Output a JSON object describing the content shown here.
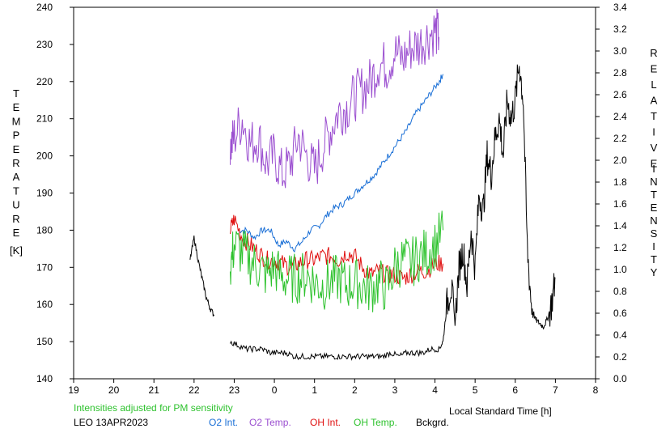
{
  "chart_data": {
    "type": "line",
    "xlabel": "Local Standard Time [h]",
    "ylabel_left_letters": [
      "T",
      "E",
      "M",
      "P",
      "E",
      "R",
      "A",
      "T",
      "U",
      "R",
      "E"
    ],
    "ylabel_left_unit": "[K]",
    "ylabel_right_word1": [
      "R",
      "E",
      "L",
      "A",
      "T",
      "I",
      "V",
      "E"
    ],
    "ylabel_right_word2": [
      "I",
      "N",
      "T",
      "E",
      "N",
      "S",
      "I",
      "T",
      "Y"
    ],
    "x_ticks": [
      "19",
      "20",
      "21",
      "22",
      "23",
      "0",
      "1",
      "2",
      "3",
      "4",
      "5",
      "6",
      "7",
      "8"
    ],
    "xlim": [
      19,
      32
    ],
    "y_left_ticks": [
      "140",
      "150",
      "160",
      "170",
      "180",
      "190",
      "200",
      "210",
      "220",
      "230",
      "240"
    ],
    "ylim_left": [
      140,
      240
    ],
    "y_right_ticks": [
      "0.0",
      "0.2",
      "0.4",
      "0.6",
      "0.8",
      "1.0",
      "1.2",
      "1.4",
      "1.6",
      "1.8",
      "2.0",
      "2.2",
      "2.4",
      "2.6",
      "2.8",
      "3.0",
      "3.2",
      "3.4"
    ],
    "ylim_right": [
      0,
      3.4
    ],
    "note": "Intensities adjusted for PM sensitivity",
    "station": "LEO 13APR2023",
    "series": [
      {
        "name": "O2 Int.",
        "color": "#1a6fd6",
        "axis": "left",
        "x": [
          23.1,
          23.3,
          23.5,
          23.7,
          23.9,
          24.1,
          24.3,
          24.5,
          24.7,
          24.9,
          25.1,
          25.3,
          25.5,
          25.7,
          25.9,
          26.1,
          26.3,
          26.5,
          26.7,
          26.9,
          27.1,
          27.3,
          27.5,
          27.7,
          27.9,
          28.1,
          28.2
        ],
        "y": [
          180,
          180,
          178,
          180,
          180,
          176,
          177,
          175,
          177,
          180,
          181,
          184,
          186,
          187,
          189,
          191,
          193,
          195,
          198,
          201,
          204,
          207,
          211,
          214,
          217,
          220,
          222
        ]
      },
      {
        "name": "O2 Temp.",
        "color": "#9b4fd0",
        "axis": "left",
        "x": [
          22.9,
          23.0,
          23.2,
          23.4,
          23.6,
          23.8,
          24.0,
          24.2,
          24.4,
          24.6,
          24.8,
          25.0,
          25.2,
          25.4,
          25.6,
          25.8,
          26.0,
          26.2,
          26.4,
          26.6,
          26.8,
          27.0,
          27.2,
          27.4,
          27.6,
          27.8,
          28.0,
          28.1
        ],
        "y": [
          202,
          205,
          210,
          203,
          205,
          198,
          200,
          195,
          198,
          205,
          200,
          196,
          202,
          207,
          212,
          213,
          216,
          218,
          220,
          225,
          224,
          228,
          226,
          229,
          230,
          232,
          234,
          232
        ]
      },
      {
        "name": "OH Int.",
        "color": "#e01010",
        "axis": "left",
        "x": [
          22.9,
          23.0,
          23.2,
          23.4,
          23.6,
          23.8,
          24.0,
          24.2,
          24.4,
          24.6,
          24.8,
          25.0,
          25.2,
          25.4,
          25.6,
          25.8,
          26.0,
          26.2,
          26.4,
          26.6,
          26.8,
          27.0,
          27.2,
          27.4,
          27.6,
          27.8,
          28.0,
          28.2
        ],
        "y": [
          180,
          183,
          178,
          176,
          174,
          172,
          172,
          171,
          170,
          171,
          172,
          172,
          173,
          173,
          172,
          174,
          173,
          170,
          168,
          169,
          168,
          168,
          167,
          168,
          169,
          169,
          171,
          171
        ]
      },
      {
        "name": "OH Temp.",
        "color": "#2ec22e",
        "axis": "left",
        "x": [
          22.9,
          23.0,
          23.2,
          23.4,
          23.6,
          23.8,
          24.0,
          24.2,
          24.4,
          24.6,
          24.8,
          25.0,
          25.2,
          25.4,
          25.6,
          25.8,
          26.0,
          26.2,
          26.4,
          26.6,
          26.8,
          27.0,
          27.2,
          27.4,
          27.6,
          27.8,
          28.0,
          28.2
        ],
        "y": [
          170,
          176,
          174,
          172,
          170,
          168,
          170,
          167,
          167,
          167,
          168,
          166,
          165,
          166,
          167,
          165,
          166,
          165,
          164,
          166,
          164,
          170,
          172,
          171,
          173,
          174,
          176,
          180
        ]
      },
      {
        "name": "Bckgrd.",
        "color": "#000000",
        "axis": "left",
        "segments": [
          {
            "x": [
              21.9,
              22.0,
              22.1,
              22.2,
              22.3,
              22.4,
              22.5
            ],
            "y": [
              172,
              178,
              172,
              167,
              162,
              159,
              157
            ]
          },
          {
            "x": [
              22.9,
              23.1,
              23.3,
              23.5,
              23.7,
              23.9,
              24.1,
              24.3,
              24.5,
              24.7,
              24.9,
              25.1,
              25.3,
              25.5,
              25.7,
              25.9,
              26.1,
              26.3,
              26.5,
              26.7,
              26.9,
              27.1,
              27.3,
              27.5,
              27.7,
              27.9,
              28.1,
              28.2,
              28.3,
              28.4,
              28.5,
              28.6,
              28.7,
              28.8,
              28.9,
              29.0,
              29.1,
              29.2,
              29.3,
              29.4,
              29.5,
              29.6,
              29.7,
              29.8,
              29.9,
              30.0,
              30.1,
              30.2,
              30.3,
              30.4,
              30.5,
              30.6,
              30.7,
              30.8,
              30.9,
              31.0
            ],
            "y": [
              150,
              149,
              148,
              148,
              148,
              147,
              147,
              147,
              146,
              146,
              146,
              146,
              146,
              146,
              146,
              146,
              146,
              146,
              146,
              146,
              147,
              146,
              147,
              147,
              147,
              148,
              148,
              150,
              160,
              165,
              155,
              170,
              175,
              165,
              180,
              170,
              190,
              185,
              200,
              195,
              205,
              210,
              200,
              215,
              210,
              215,
              225,
              215,
              175,
              160,
              156,
              155,
              154,
              156,
              160,
              167
            ]
          }
        ]
      }
    ]
  }
}
